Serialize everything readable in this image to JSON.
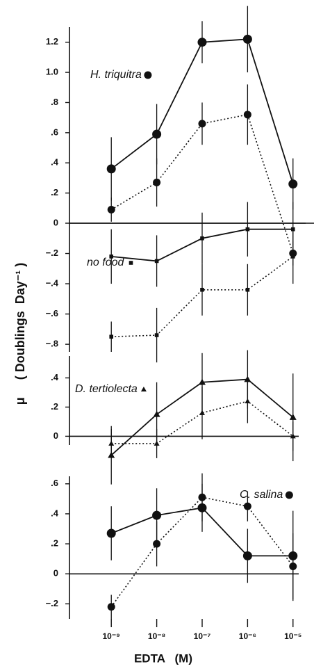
{
  "chart_data": [
    {
      "type": "line",
      "annotation": "H. triquitra",
      "marker": "circle",
      "xscale": "log",
      "x": [
        1e-09,
        1e-08,
        1e-07,
        1e-06,
        1e-05
      ],
      "xlim": [
        1.2e-10,
        2.9e-05
      ],
      "ylim": [
        0,
        1.3
      ],
      "yticks": [
        0,
        {
          "value": 0.2,
          "label": ".2"
        },
        {
          "value": 0.4,
          "label": ".4"
        },
        {
          "value": 0.6,
          "label": ".6"
        },
        {
          "value": 0.8,
          "label": ".8"
        },
        {
          "value": 1,
          "label": "1.0"
        },
        1.2
      ],
      "series": [
        {
          "color": "#111111",
          "linestyle": "solid",
          "values": [
            0.36,
            0.59,
            1.2,
            1.22,
            0.26
          ],
          "errors": [
            0.21,
            0.2,
            0.14,
            0.22,
            0.17
          ]
        },
        {
          "color": "#111111",
          "linestyle": "dotted",
          "values": [
            0.09,
            0.27,
            0.66,
            0.72,
            -0.2
          ],
          "errors": [
            0.08,
            0.16,
            0.14,
            0.2,
            0.08
          ]
        }
      ]
    },
    {
      "type": "line",
      "annotation": "no food",
      "marker": "square",
      "xscale": "log",
      "x": [
        1e-09,
        1e-08,
        1e-07,
        1e-06,
        1e-05
      ],
      "xlim": [
        1.2e-10,
        2.9e-05
      ],
      "ylim": [
        -0.85,
        0
      ],
      "yticks": [
        {
          "value": -0.2,
          "label": "−.2"
        },
        {
          "value": -0.4,
          "label": "−.4"
        },
        {
          "value": -0.6,
          "label": "−.6"
        },
        {
          "value": -0.8,
          "label": "−.8"
        }
      ],
      "series": [
        {
          "color": "#111111",
          "linestyle": "solid",
          "values": [
            -0.22,
            -0.25,
            -0.1,
            -0.04,
            -0.04
          ],
          "errors": [
            0.18,
            0.17,
            0.17,
            0.18,
            0.18
          ]
        },
        {
          "color": "#111111",
          "linestyle": "dotted",
          "values": [
            -0.75,
            -0.74,
            -0.44,
            -0.44,
            -0.22
          ],
          "errors": [
            0.1,
            0.18,
            0.17,
            0.17,
            0.18
          ]
        }
      ]
    },
    {
      "type": "line",
      "annotation": "D. tertiolecta",
      "marker": "triangle",
      "xscale": "log",
      "x": [
        1e-09,
        1e-08,
        1e-07,
        1e-06,
        1e-05
      ],
      "xlim": [
        1.2e-10,
        2.9e-05
      ],
      "ylim": [
        -0.06,
        0.55
      ],
      "yticks": [
        0,
        {
          "value": 0.2,
          "label": ".2"
        },
        {
          "value": 0.4,
          "label": ".4"
        }
      ],
      "series": [
        {
          "color": "#111111",
          "linestyle": "solid",
          "values": [
            -0.13,
            0.15,
            0.37,
            0.39,
            0.13
          ],
          "errors": [
            0.2,
            0.22,
            0.2,
            0.2,
            0.3
          ]
        },
        {
          "color": "#111111",
          "linestyle": "dotted",
          "values": [
            -0.05,
            -0.05,
            0.16,
            0.24,
            0
          ],
          "errors": [
            0.1,
            0.1,
            0.18,
            0.15,
            0.1
          ]
        }
      ]
    },
    {
      "type": "line",
      "annotation": "C. salina",
      "marker": "circle",
      "xscale": "log",
      "x": [
        1e-09,
        1e-08,
        1e-07,
        1e-06,
        1e-05
      ],
      "xlim": [
        1.2e-10,
        2.9e-05
      ],
      "ylim": [
        -0.3,
        0.65
      ],
      "yticks": [
        {
          "value": -0.2,
          "label": "−.2"
        },
        0,
        {
          "value": 0.2,
          "label": ".2"
        },
        {
          "value": 0.4,
          "label": ".4"
        },
        {
          "value": 0.6,
          "label": ".6"
        }
      ],
      "xticks": [
        {
          "value": 1e-09,
          "label": "10⁻⁹"
        },
        {
          "value": 1e-08,
          "label": "10⁻⁸"
        },
        {
          "value": 1e-07,
          "label": "10⁻⁷"
        },
        {
          "value": 1e-06,
          "label": "10⁻⁶"
        },
        {
          "value": 1e-05,
          "label": "10⁻⁵"
        }
      ],
      "xlabel": "EDTA   (M)",
      "ylabel": "μ     ( Doublings  Day⁻¹ )",
      "series": [
        {
          "color": "#111111",
          "linestyle": "solid",
          "values": [
            0.27,
            0.39,
            0.44,
            0.12,
            0.12
          ],
          "errors": [
            0.18,
            0.18,
            0.16,
            0.18,
            0.3
          ]
        },
        {
          "color": "#111111",
          "linestyle": "dotted",
          "values": [
            -0.22,
            0.2,
            0.51,
            0.45,
            0.05
          ],
          "errors": [
            0.08,
            0.15,
            0.16,
            0.1,
            0.22
          ]
        }
      ]
    }
  ]
}
